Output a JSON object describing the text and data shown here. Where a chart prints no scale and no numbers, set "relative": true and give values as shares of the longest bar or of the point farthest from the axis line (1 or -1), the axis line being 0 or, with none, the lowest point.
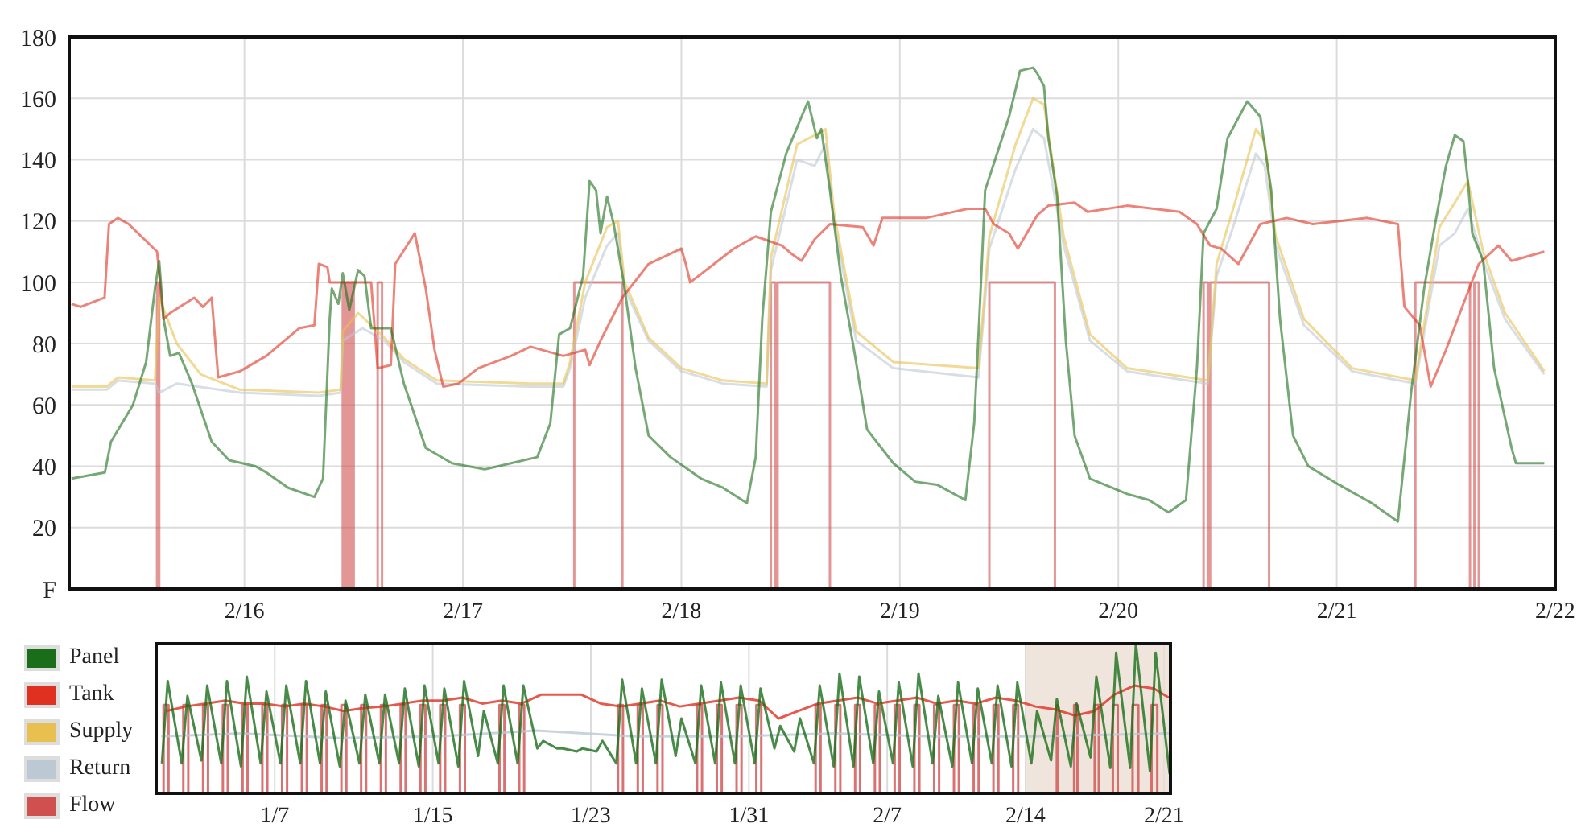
{
  "chart_data": [
    {
      "type": "line",
      "xlim": [
        "--02-15T04:45",
        "--02-22"
      ],
      "xticks": [
        {
          "value": "--02-16",
          "label": "2/16"
        },
        {
          "value": "--02-17",
          "label": "2/17"
        },
        {
          "value": "--02-18",
          "label": "2/18"
        },
        {
          "value": "--02-19",
          "label": "2/19"
        },
        {
          "value": "--02-20",
          "label": "2/20"
        },
        {
          "value": "--02-21",
          "label": "2/21"
        },
        {
          "value": "--02-22",
          "label": "2/22"
        }
      ],
      "ylim": [
        0,
        180
      ],
      "yticks": [
        {
          "value": 0,
          "label": "F"
        },
        20,
        40,
        60,
        80,
        100,
        120,
        140,
        160,
        180
      ],
      "grid": true,
      "legend": "bottom left",
      "series": [
        {
          "name": "Flow",
          "type": "step",
          "color": "#d05050",
          "x": [
            "--02-15T04:45",
            "--02-15T14:24",
            "--02-15T14:38",
            "--02-16T10:48",
            "--02-16T11:02",
            "--02-16T11:17",
            "--02-16T11:31",
            "--02-16T11:46",
            "--02-16T12:00",
            "--02-16T14:38",
            "--02-16T15:07",
            "--02-17T12:14",
            "--02-17T17:31",
            "--02-18T09:50",
            "--02-18T10:19",
            "--02-18T10:34",
            "--02-18T16:19",
            "--02-19T09:50",
            "--02-19T17:02",
            "--02-20T09:22",
            "--02-20T09:50",
            "--02-20T10:05",
            "--02-20T16:34",
            "--02-21T08:38",
            "--02-21T14:38",
            "--02-21T15:07",
            "--02-21T15:36",
            "--02-21T23:15"
          ],
          "values": [
            0,
            100,
            0,
            100,
            0,
            100,
            0,
            100,
            0,
            100,
            0,
            100,
            0,
            100,
            0,
            100,
            0,
            100,
            0,
            100,
            0,
            100,
            0,
            100,
            0,
            100,
            0,
            0
          ]
        },
        {
          "name": "Return",
          "color": "#bcc8d4",
          "x": [
            "--02-15T05:00",
            "--02-15T08:53",
            "--02-15T10:05",
            "--02-15T14:10",
            "--02-15T14:38",
            "--02-15T16:34",
            "--02-15T23:31",
            "--02-16T08:10",
            "--02-16T10:34",
            "--02-16T10:48",
            "--02-16T12:58",
            "--02-16T15:22",
            "--02-16T17:31",
            "--02-16T21:07",
            "--02-17T07:26",
            "--02-17T11:02",
            "--02-17T11:46",
            "--02-17T13:26",
            "--02-17T15:50",
            "--02-17T17:02",
            "--02-17T17:46",
            "--02-17T20:24",
            "--02-18T00:00",
            "--02-18T04:34",
            "--02-18T09:22",
            "--02-18T09:50",
            "--02-18T12:43",
            "--02-18T14:38",
            "--02-18T15:50",
            "--02-18T16:48",
            "--02-18T19:12",
            "--02-18T23:17",
            "--02-19T08:38",
            "--02-19T09:50",
            "--02-19T12:43",
            "--02-19T14:38",
            "--02-19T15:50",
            "--02-19T18:00",
            "--02-19T20:53",
            "--02-20T00:58",
            "--02-20T09:50",
            "--02-20T10:48",
            "--02-20T12:43",
            "--02-20T15:07",
            "--02-20T16:05",
            "--02-20T17:17",
            "--02-20T20:24",
            "--02-21T01:41",
            "--02-21T08:38",
            "--02-21T11:17",
            "--02-21T12:58",
            "--02-21T14:24",
            "--02-21T16:05",
            "--02-21T18:29",
            "--02-21T22:48"
          ],
          "values": [
            65,
            65,
            68,
            67,
            64,
            67,
            64,
            63,
            64,
            81,
            85,
            81,
            74,
            67,
            66,
            66,
            72,
            95,
            112,
            116,
            98,
            81,
            71,
            67,
            66,
            104,
            140,
            138,
            145,
            119,
            81,
            72,
            69,
            111,
            137,
            150,
            147,
            112,
            81,
            71,
            67,
            102,
            119,
            142,
            138,
            112,
            86,
            71,
            67,
            112,
            116,
            124,
            107,
            88,
            70
          ]
        },
        {
          "name": "Supply",
          "color": "#e8c050",
          "x": [
            "--02-15T05:00",
            "--02-15T08:53",
            "--02-15T10:05",
            "--02-15T14:10",
            "--02-15T14:38",
            "--02-15T16:34",
            "--02-15T19:12",
            "--02-15T23:31",
            "--02-16T08:10",
            "--02-16T10:34",
            "--02-16T10:48",
            "--02-16T12:29",
            "--02-16T15:22",
            "--02-16T17:31",
            "--02-16T21:07",
            "--02-17T07:26",
            "--02-17T11:02",
            "--02-17T11:46",
            "--02-17T13:26",
            "--02-17T15:50",
            "--02-17T17:02",
            "--02-17T17:46",
            "--02-17T20:24",
            "--02-18T00:00",
            "--02-18T04:34",
            "--02-18T09:22",
            "--02-18T09:50",
            "--02-18T12:43",
            "--02-18T14:38",
            "--02-18T15:50",
            "--02-18T16:48",
            "--02-18T19:12",
            "--02-18T23:17",
            "--02-19T08:38",
            "--02-19T09:50",
            "--02-19T12:43",
            "--02-19T14:38",
            "--02-19T15:50",
            "--02-19T18:00",
            "--02-19T20:53",
            "--02-20T00:58",
            "--02-20T09:50",
            "--02-20T10:48",
            "--02-20T12:43",
            "--02-20T15:07",
            "--02-20T16:05",
            "--02-20T17:17",
            "--02-20T20:24",
            "--02-21T01:41",
            "--02-21T08:38",
            "--02-21T11:17",
            "--02-21T12:58",
            "--02-21T14:24",
            "--02-21T16:05",
            "--02-21T18:29",
            "--02-21T22:48"
          ],
          "values": [
            66,
            66,
            69,
            68,
            95,
            80,
            70,
            65,
            64,
            65,
            84,
            90,
            82,
            75,
            68,
            67,
            67,
            74,
            100,
            118,
            120,
            100,
            82,
            72,
            68,
            67,
            108,
            145,
            148,
            150,
            122,
            84,
            74,
            72,
            115,
            145,
            160,
            158,
            115,
            83,
            72,
            68,
            106,
            125,
            150,
            146,
            115,
            88,
            72,
            68,
            118,
            126,
            133,
            110,
            90,
            71
          ]
        },
        {
          "name": "Tank",
          "color": "#e03020",
          "x": [
            "--02-15T05:00",
            "--02-15T06:00",
            "--02-15T08:38",
            "--02-15T09:07",
            "--02-15T10:05",
            "--02-15T11:17",
            "--02-15T14:24",
            "--02-15T15:07",
            "--02-15T15:50",
            "--02-15T18:29",
            "--02-15T19:26",
            "--02-15T20:24",
            "--02-15T21:07",
            "--02-15T23:31",
            "--02-16T02:24",
            "--02-16T06:00",
            "--02-16T07:41",
            "--02-16T08:10",
            "--02-16T09:07",
            "--02-16T09:22",
            "--02-16T13:55",
            "--02-16T14:38",
            "--02-16T16:05",
            "--02-16T16:34",
            "--02-16T18:43",
            "--02-16T19:55",
            "--02-16T20:53",
            "--02-16T21:50",
            "--02-16T23:31",
            "--02-17T01:41",
            "--02-17T05:17",
            "--02-17T07:26",
            "--02-17T11:02",
            "--02-17T13:26",
            "--02-17T13:55",
            "--02-17T15:07",
            "--02-17T17:31",
            "--02-17T20:24",
            "--02-18T00:00",
            "--02-18T00:29",
            "--02-18T00:58",
            "--02-18T03:36",
            "--02-18T05:46",
            "--02-18T08:10",
            "--02-18T11:02",
            "--02-18T12:14",
            "--02-18T13:12",
            "--02-18T14:38",
            "--02-18T16:19",
            "--02-18T19:55",
            "--02-18T21:07",
            "--02-18T22:05",
            "--02-19T02:53",
            "--02-19T07:26",
            "--02-19T09:22",
            "--02-19T10:19",
            "--02-19T12:00",
            "--02-19T12:58",
            "--02-19T15:07",
            "--02-19T16:19",
            "--02-19T19:12",
            "--02-19T20:38",
            "--02-20T00:58",
            "--02-20T06:43",
            "--02-20T08:38",
            "--02-20T10:05",
            "--02-20T11:17",
            "--02-20T13:12",
            "--02-20T15:36",
            "--02-20T18:29",
            "--02-20T21:22",
            "--02-21T03:22",
            "--02-21T06:43",
            "--02-21T07:26",
            "--02-21T09:07",
            "--02-21T10:19",
            "--02-21T12:00",
            "--02-21T13:55",
            "--02-21T15:36",
            "--02-21T17:46",
            "--02-21T19:12",
            "--02-21T22:48"
          ],
          "values": [
            93,
            92,
            95,
            119,
            121,
            119,
            110,
            88,
            90,
            95,
            92,
            95,
            69,
            71,
            76,
            85,
            86,
            106,
            105,
            100,
            100,
            72,
            73,
            106,
            116,
            98,
            78,
            66,
            67,
            72,
            76,
            79,
            76,
            78,
            73,
            81,
            95,
            106,
            111,
            106,
            100,
            106,
            111,
            115,
            112,
            109,
            107,
            114,
            119,
            118,
            112,
            121,
            121,
            124,
            124,
            119,
            116,
            111,
            122,
            125,
            126,
            123,
            125,
            123,
            119,
            112,
            111,
            106,
            119,
            121,
            119,
            121,
            119,
            92,
            86,
            66,
            78,
            93,
            106,
            112,
            107,
            110
          ]
        },
        {
          "name": "Panel",
          "color": "#1a6e1a",
          "x": [
            "--02-15T05:00",
            "--02-15T08:40",
            "--02-15T09:20",
            "--02-15T11:45",
            "--02-15T13:12",
            "--02-15T14:10",
            "--02-15T14:38",
            "--02-15T15:07",
            "--02-15T15:50",
            "--02-15T16:48",
            "--02-15T18:14",
            "--02-15T20:24",
            "--02-15T22:19",
            "--02-16T01:12",
            "--02-16T02:24",
            "--02-16T04:48",
            "--02-16T07:41",
            "--02-16T08:38",
            "--02-16T09:22",
            "--02-16T09:36",
            "--02-16T10:19",
            "--02-16T10:48",
            "--02-16T11:31",
            "--02-16T12:29",
            "--02-16T13:12",
            "--02-16T13:55",
            "--02-16T16:05",
            "--02-16T17:31",
            "--02-16T19:55",
            "--02-16T22:48",
            "--02-17T02:24",
            "--02-17T05:17",
            "--02-17T08:10",
            "--02-17T09:36",
            "--02-17T10:34",
            "--02-17T11:46",
            "--02-17T13:12",
            "--02-17T13:55",
            "--02-17T14:38",
            "--02-17T15:07",
            "--02-17T15:50",
            "--02-17T16:34",
            "--02-17T17:46",
            "--02-17T18:58",
            "--02-17T20:24",
            "--02-17T22:48",
            "--02-18T02:10",
            "--02-18T04:34",
            "--02-18T07:12",
            "--02-18T08:10",
            "--02-18T08:53",
            "--02-18T09:50",
            "--02-18T11:31",
            "--02-18T13:12",
            "--02-18T13:55",
            "--02-18T14:53",
            "--02-18T15:22",
            "--02-18T16:19",
            "--02-18T17:31",
            "--02-18T18:58",
            "--02-18T20:24",
            "--02-18T23:17",
            "--02-19T01:41",
            "--02-19T04:05",
            "--02-19T07:12",
            "--02-19T08:10",
            "--02-19T08:53",
            "--02-19T09:22",
            "--02-19T12:00",
            "--02-19T13:12",
            "--02-19T14:38",
            "--02-19T15:07",
            "--02-19T15:50",
            "--02-19T16:19",
            "--02-19T17:17",
            "--02-19T18:14",
            "--02-19T19:12",
            "--02-19T20:53",
            "--02-20T00:58",
            "--02-20T03:22",
            "--02-20T05:31",
            "--02-20T07:26",
            "--02-20T08:38",
            "--02-20T09:22",
            "--02-20T10:48",
            "--02-20T12:00",
            "--02-20T14:10",
            "--02-20T15:36",
            "--02-20T16:48",
            "--02-20T17:46",
            "--02-20T19:12",
            "--02-20T20:53",
            "--02-21T00:14",
            "--02-21T03:50",
            "--02-21T06:43",
            "--02-21T08:10",
            "--02-21T09:36",
            "--02-21T10:48",
            "--02-21T12:00",
            "--02-21T12:58",
            "--02-21T13:55",
            "--02-21T14:24",
            "--02-21T14:53",
            "--02-21T16:05",
            "--02-21T17:17",
            "--02-21T19:12",
            "--02-21T19:41",
            "--02-21T22:48"
          ],
          "values": [
            36,
            38,
            48,
            60,
            74,
            98,
            107,
            88,
            76,
            77,
            67,
            48,
            42,
            40,
            38,
            33,
            30,
            36,
            88,
            98,
            93,
            103,
            91,
            104,
            102,
            85,
            85,
            67,
            46,
            41,
            39,
            41,
            43,
            54,
            83,
            85,
            102,
            133,
            130,
            116,
            128,
            119,
            98,
            72,
            50,
            43,
            36,
            33,
            28,
            43,
            88,
            123,
            142,
            154,
            159,
            147,
            150,
            130,
            102,
            78,
            52,
            41,
            35,
            34,
            29,
            54,
            98,
            130,
            154,
            169,
            170,
            168,
            164,
            147,
            128,
            81,
            50,
            36,
            31,
            29,
            25,
            29,
            72,
            116,
            124,
            147,
            159,
            154,
            130,
            88,
            50,
            40,
            34,
            28,
            22,
            64,
            98,
            119,
            138,
            148,
            146,
            133,
            116,
            107,
            72,
            46,
            41,
            41
          ]
        }
      ]
    },
    {
      "type": "line",
      "relative": true,
      "tick_labels": "x",
      "grid": "x",
      "xlim": [
        "--01-01",
        "--02-21T08:00"
      ],
      "xticks": [
        {
          "value": "--01-07",
          "label": "1/7"
        },
        {
          "value": "--01-15",
          "label": "1/15"
        },
        {
          "value": "--01-23",
          "label": "1/23"
        },
        {
          "value": "--01-31",
          "label": "1/31"
        },
        {
          "value": "--02-07",
          "label": "2/7"
        },
        {
          "value": "--02-14",
          "label": "2/14"
        },
        {
          "value": "--02-21",
          "label": "2/21"
        }
      ],
      "bands": [
        {
          "axis": "x",
          "from": "--02-14",
          "to": "--02-21T08:00",
          "color": "#ecdfd3"
        }
      ],
      "series": [
        {
          "type": "step",
          "color": "#d05050",
          "x": [
            "--01-01T00:00",
            "--01-01T09:00",
            "--01-01T15:00",
            "--01-02T09:00",
            "--01-02T15:00",
            "--01-03T09:00",
            "--01-03T15:00",
            "--01-04T09:00",
            "--01-04T15:00",
            "--01-05T09:00",
            "--01-05T15:00",
            "--01-06T09:00",
            "--01-06T15:00",
            "--01-07T09:00",
            "--01-07T15:00",
            "--01-08T09:00",
            "--01-08T15:00",
            "--01-09T09:00",
            "--01-09T15:00",
            "--01-10T09:00",
            "--01-10T15:00",
            "--01-11T09:00",
            "--01-11T15:00",
            "--01-12T09:00",
            "--01-12T15:00",
            "--01-13T09:00",
            "--01-13T15:00",
            "--01-14T09:00",
            "--01-14T15:00",
            "--01-15T09:00",
            "--01-15T15:00",
            "--01-16T09:00",
            "--01-16T15:00",
            "--01-18T09:00",
            "--01-18T15:00",
            "--01-19T09:00",
            "--01-19T15:00",
            "--01-24T09:00",
            "--01-24T15:00",
            "--01-25T09:00",
            "--01-25T15:00",
            "--01-26T09:00",
            "--01-26T15:00",
            "--01-28T09:00",
            "--01-28T15:00",
            "--01-29T09:00",
            "--01-29T15:00",
            "--01-30T09:00",
            "--01-30T15:00",
            "--01-31T09:00",
            "--01-31T15:00",
            "--02-03T09:00",
            "--02-03T15:00",
            "--02-04T09:00",
            "--02-04T15:00",
            "--02-05T09:00",
            "--02-05T15:00",
            "--02-06T09:00",
            "--02-06T15:00",
            "--02-07T09:00",
            "--02-07T15:00",
            "--02-08T09:00",
            "--02-08T15:00",
            "--02-09T09:00",
            "--02-09T15:00",
            "--02-10T09:00",
            "--02-10T15:00",
            "--02-11T09:00",
            "--02-11T15:00",
            "--02-12T09:00",
            "--02-12T15:00",
            "--02-13T09:00",
            "--02-13T15:00",
            "--02-15T14:00",
            "--02-15T15:00",
            "--02-16T11:00",
            "--02-16T15:00",
            "--02-17T12:00",
            "--02-17T17:00",
            "--02-18T10:00",
            "--02-18T16:00",
            "--02-19T10:00",
            "--02-19T17:00",
            "--02-20T09:00",
            "--02-20T16:00",
            "--02-21T08:00"
          ],
          "values": [
            0,
            0.59,
            0,
            0.59,
            0,
            0.59,
            0,
            0.59,
            0,
            0.59,
            0,
            0.59,
            0,
            0.59,
            0,
            0.59,
            0,
            0.59,
            0,
            0.59,
            0,
            0.59,
            0,
            0.59,
            0,
            0.59,
            0,
            0.59,
            0,
            0.59,
            0,
            0.59,
            0,
            0.59,
            0,
            0.59,
            0,
            0.59,
            0,
            0.59,
            0,
            0.59,
            0,
            0.59,
            0,
            0.59,
            0,
            0.59,
            0,
            0.59,
            0,
            0.59,
            0,
            0.59,
            0,
            0.59,
            0,
            0.59,
            0,
            0.59,
            0,
            0.59,
            0,
            0.59,
            0,
            0.59,
            0,
            0.59,
            0,
            0.59,
            0,
            0.59,
            0,
            0.59,
            0,
            0.59,
            0,
            0.59,
            0,
            0.59,
            0,
            0.59,
            0,
            0.59,
            0,
            0
          ]
        },
        {
          "color": "#bcc8d4",
          "x": [
            "--01-01T06:00",
            "--01-05T06:00",
            "--01-10T06:00",
            "--01-15T06:00",
            "--01-20T06:00",
            "--01-25T06:00",
            "--01-30T06:00",
            "--02-04T06:00",
            "--02-09T06:00",
            "--02-14T06:00",
            "--02-21T06:00"
          ],
          "values": [
            0.38,
            0.4,
            0.37,
            0.38,
            0.42,
            0.38,
            0.38,
            0.4,
            0.38,
            0.38,
            0.4
          ]
        },
        {
          "color": "#e03020",
          "x": [
            "--01-01T12:00",
            "--01-02T12:00",
            "--01-03T12:00",
            "--01-04T12:00",
            "--01-05T12:00",
            "--01-06T12:00",
            "--01-07T12:00",
            "--01-08T12:00",
            "--01-09T12:00",
            "--01-10T12:00",
            "--01-11T12:00",
            "--01-12T12:00",
            "--01-13T12:00",
            "--01-14T12:00",
            "--01-15T12:00",
            "--01-16T12:00",
            "--01-17T12:00",
            "--01-18T12:00",
            "--01-19T12:00",
            "--01-20T12:00",
            "--01-21T12:00",
            "--01-22T12:00",
            "--01-23T12:00",
            "--01-24T12:00",
            "--01-25T12:00",
            "--01-26T12:00",
            "--01-27T12:00",
            "--01-28T12:00",
            "--01-29T12:00",
            "--01-30T12:00",
            "--01-31T12:00",
            "--02-01T12:00",
            "--02-02T12:00",
            "--02-03T12:00",
            "--02-04T12:00",
            "--02-05T12:00",
            "--02-06T12:00",
            "--02-07T12:00",
            "--02-08T12:00",
            "--02-09T12:00",
            "--02-10T12:00",
            "--02-11T12:00",
            "--02-12T12:00",
            "--02-13T12:00",
            "--02-14T12:00",
            "--02-15T12:00",
            "--02-16T12:00",
            "--02-17T12:00",
            "--02-18T12:00",
            "--02-19T12:00",
            "--02-20T12:00",
            "--02-21T06:00"
          ],
          "values": [
            0.55,
            0.58,
            0.6,
            0.62,
            0.6,
            0.6,
            0.58,
            0.6,
            0.58,
            0.55,
            0.57,
            0.58,
            0.6,
            0.62,
            0.62,
            0.64,
            0.6,
            0.62,
            0.6,
            0.66,
            0.66,
            0.66,
            0.6,
            0.58,
            0.6,
            0.62,
            0.58,
            0.6,
            0.62,
            0.64,
            0.62,
            0.5,
            0.55,
            0.6,
            0.62,
            0.64,
            0.6,
            0.62,
            0.64,
            0.6,
            0.62,
            0.6,
            0.64,
            0.62,
            0.58,
            0.56,
            0.52,
            0.55,
            0.66,
            0.72,
            0.7,
            0.64
          ]
        },
        {
          "color": "#1a6e1a",
          "x": [
            "--01-01T07:00",
            "--01-01T14:00",
            "--01-02T07:00",
            "--01-02T14:00",
            "--01-03T07:00",
            "--01-03T14:00",
            "--01-04T07:00",
            "--01-04T14:00",
            "--01-05T07:00",
            "--01-05T14:00",
            "--01-06T07:00",
            "--01-06T14:00",
            "--01-07T07:00",
            "--01-07T14:00",
            "--01-08T07:00",
            "--01-08T14:00",
            "--01-09T07:00",
            "--01-09T14:00",
            "--01-10T07:00",
            "--01-10T14:00",
            "--01-11T07:00",
            "--01-11T14:00",
            "--01-12T07:00",
            "--01-12T14:00",
            "--01-13T07:00",
            "--01-13T14:00",
            "--01-14T07:00",
            "--01-14T14:00",
            "--01-15T07:00",
            "--01-15T14:00",
            "--01-16T07:00",
            "--01-16T14:00",
            "--01-17T07:00",
            "--01-17T14:00",
            "--01-18T07:00",
            "--01-18T14:00",
            "--01-19T07:00",
            "--01-19T14:00",
            "--01-20T07:00",
            "--01-20T14:00",
            "--01-21T07:00",
            "--01-21T14:00",
            "--01-22T07:00",
            "--01-22T14:00",
            "--01-23T07:00",
            "--01-23T14:00",
            "--01-24T07:00",
            "--01-24T14:00",
            "--01-25T07:00",
            "--01-25T14:00",
            "--01-26T07:00",
            "--01-26T14:00",
            "--01-27T07:00",
            "--01-27T14:00",
            "--01-28T07:00",
            "--01-28T14:00",
            "--01-29T07:00",
            "--01-29T14:00",
            "--01-30T07:00",
            "--01-30T14:00",
            "--01-31T07:00",
            "--01-31T14:00",
            "--02-01T07:00",
            "--02-01T14:00",
            "--02-02T07:00",
            "--02-02T14:00",
            "--02-03T07:00",
            "--02-03T14:00",
            "--02-04T07:00",
            "--02-04T14:00",
            "--02-05T07:00",
            "--02-05T14:00",
            "--02-06T07:00",
            "--02-06T14:00",
            "--02-07T07:00",
            "--02-07T14:00",
            "--02-08T07:00",
            "--02-08T14:00",
            "--02-09T07:00",
            "--02-09T14:00",
            "--02-10T07:00",
            "--02-10T14:00",
            "--02-11T07:00",
            "--02-11T14:00",
            "--02-12T07:00",
            "--02-12T14:00",
            "--02-13T07:00",
            "--02-13T14:00",
            "--02-14T07:00",
            "--02-14T14:00",
            "--02-15T07:00",
            "--02-15T14:00",
            "--02-16T07:00",
            "--02-16T14:00",
            "--02-17T07:00",
            "--02-17T14:00",
            "--02-18T07:00",
            "--02-18T14:00",
            "--02-19T07:00",
            "--02-19T14:00",
            "--02-20T07:00",
            "--02-20T14:00",
            "--02-21T07:00"
          ],
          "values": [
            0.2,
            0.75,
            0.2,
            0.65,
            0.22,
            0.72,
            0.2,
            0.75,
            0.18,
            0.78,
            0.2,
            0.68,
            0.2,
            0.72,
            0.2,
            0.75,
            0.2,
            0.68,
            0.18,
            0.62,
            0.2,
            0.66,
            0.2,
            0.66,
            0.2,
            0.7,
            0.18,
            0.72,
            0.2,
            0.7,
            0.18,
            0.75,
            0.25,
            0.55,
            0.2,
            0.72,
            0.2,
            0.72,
            0.3,
            0.35,
            0.3,
            0.3,
            0.28,
            0.3,
            0.28,
            0.35,
            0.2,
            0.76,
            0.2,
            0.7,
            0.2,
            0.76,
            0.25,
            0.5,
            0.2,
            0.72,
            0.2,
            0.74,
            0.2,
            0.72,
            0.2,
            0.7,
            0.3,
            0.45,
            0.28,
            0.5,
            0.2,
            0.72,
            0.18,
            0.8,
            0.18,
            0.78,
            0.2,
            0.68,
            0.2,
            0.74,
            0.18,
            0.8,
            0.2,
            0.65,
            0.18,
            0.74,
            0.2,
            0.7,
            0.2,
            0.72,
            0.18,
            0.74,
            0.2,
            0.55,
            0.22,
            0.63,
            0.18,
            0.6,
            0.24,
            0.78,
            0.17,
            0.94,
            0.17,
            1.0,
            0.15,
            0.94,
            0.13
          ]
        }
      ]
    }
  ]
}
